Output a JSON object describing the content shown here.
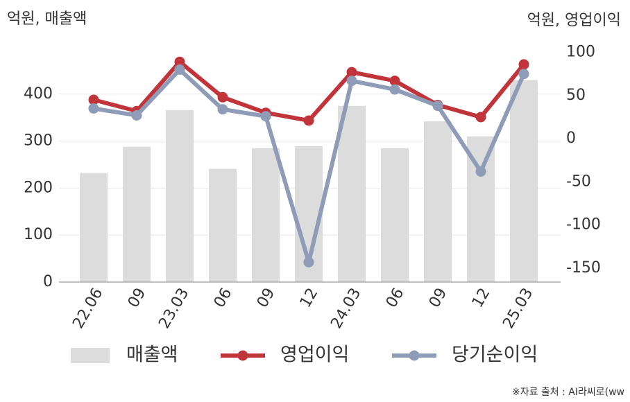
{
  "chart_data": {
    "type": "bar-line",
    "left_unit_label": "억원, 매출액",
    "right_unit_label": "억원, 영업이익",
    "source": "※자료 출처 : AI라씨로(ww",
    "categories": [
      "22.06",
      "09",
      "23.03",
      "06",
      "09",
      "12",
      "24.03",
      "06",
      "09",
      "12",
      "25.03"
    ],
    "series": [
      {
        "name": "매출액",
        "color": "#dcdcdc",
        "kind": "bar",
        "values": [
          232,
          288,
          366,
          241,
          285,
          289,
          375,
          285,
          342,
          310,
          430
        ]
      },
      {
        "name": "영업이익",
        "color": "#c0343a",
        "kind": "line",
        "axis": "y2",
        "values": [
          45,
          32,
          89,
          48,
          30,
          21,
          77,
          67,
          39,
          25,
          86
        ]
      },
      {
        "name": "당기순이익",
        "color": "#8f9cb8",
        "kind": "line",
        "axis": "y2",
        "values": [
          35,
          27,
          80,
          34,
          26,
          -143,
          67,
          57,
          38,
          -38,
          75
        ]
      }
    ],
    "ylim": [
      0,
      500
    ],
    "yticks": [
      0,
      100,
      200,
      300,
      400
    ],
    "y2lim": [
      -166,
      106
    ],
    "y2ticks": [
      -150,
      -100,
      -50,
      0,
      50,
      100
    ],
    "grid": true
  }
}
